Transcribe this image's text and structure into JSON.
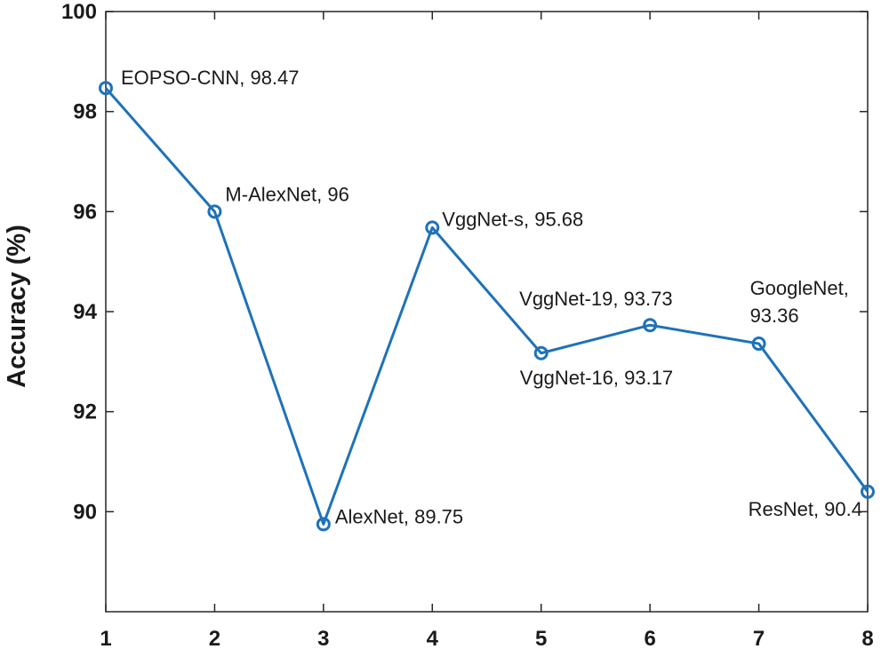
{
  "chart_data": {
    "type": "line",
    "title": "",
    "xlabel": "",
    "ylabel": "Accuracy (%)",
    "x": [
      1,
      2,
      3,
      4,
      5,
      6,
      7,
      8
    ],
    "xlim": [
      1,
      8
    ],
    "ylim": [
      88,
      100
    ],
    "xticks": [
      "1",
      "2",
      "3",
      "4",
      "5",
      "6",
      "7",
      "8"
    ],
    "yticks": [
      "90",
      "92",
      "94",
      "96",
      "98",
      "100"
    ],
    "grid": false,
    "series": [
      {
        "values": [
          98.47,
          96,
          89.75,
          95.68,
          93.17,
          93.73,
          93.36,
          90.4
        ],
        "color": "#1f72b8",
        "marker": "circle"
      }
    ],
    "annotations": [
      {
        "lines": [
          "EOPSO-CNN, 98.47"
        ]
      },
      {
        "lines": [
          "M-AlexNet, 96"
        ]
      },
      {
        "lines": [
          "AlexNet, 89.75"
        ]
      },
      {
        "lines": [
          "VggNet-s, 95.68"
        ]
      },
      {
        "lines": [
          "VggNet-16, 93.17"
        ]
      },
      {
        "lines": [
          "VggNet-19, 93.73"
        ]
      },
      {
        "lines": [
          "GoogleNet,",
          "93.36"
        ]
      },
      {
        "lines": [
          "ResNet, 90.4"
        ]
      }
    ]
  }
}
